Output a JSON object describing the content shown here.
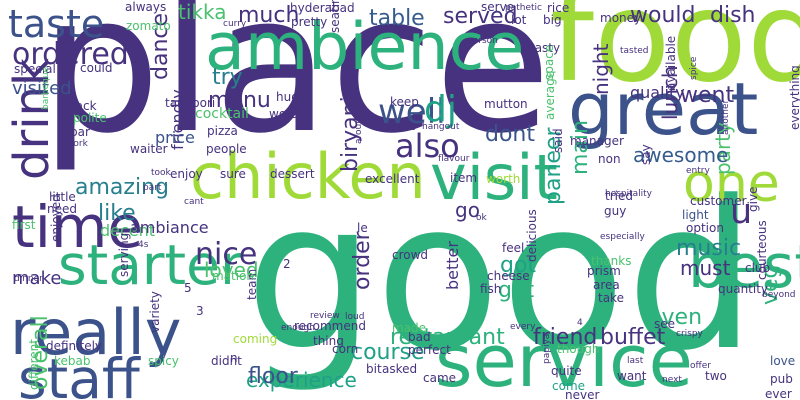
{
  "palette": {
    "purple": "#46327e",
    "indigo": "#3b528b",
    "blue": "#365c8d",
    "teal": "#277f8e",
    "cyan": "#1fa187",
    "green": "#2db27d",
    "lime": "#4ac16d",
    "yellow": "#a0da39",
    "lightyellow": "#cae11f",
    "darkpurple": "#440154"
  },
  "words": [
    "place",
    "good",
    "food",
    "ambience",
    "service",
    "great",
    "chicken",
    "visit",
    "best",
    "really",
    "staff",
    "time",
    "starter",
    "one",
    "taste",
    "drink",
    "ordered",
    "also",
    "well",
    "dj",
    "biryani",
    "menu",
    "try",
    "nice",
    "much",
    "tikka",
    "table",
    "served",
    "would",
    "dish",
    "amazing",
    "like",
    "go",
    "dont",
    "main",
    "paneer",
    "music",
    "loved",
    "experience",
    "course",
    "restaurant",
    "friend",
    "buffet",
    "order",
    "got",
    "get",
    "even",
    "must",
    "party",
    "veg",
    "awesome",
    "lunch",
    "went",
    "night",
    "quality",
    "floor",
    "overall",
    "decent",
    "make",
    "ambiance",
    "visited",
    "u",
    "dance",
    "friendly",
    "price",
    "cocktail",
    "pizza",
    "tandoori",
    "back",
    "bar",
    "polite",
    "waiter",
    "enjoy",
    "sure",
    "dessert",
    "excellent",
    "item",
    "worth",
    "better",
    "crowd",
    "feel",
    "cheese",
    "fish",
    "prism",
    "area",
    "take",
    "thanks",
    "tried",
    "guy",
    "customer",
    "light",
    "option",
    "club",
    "give",
    "courteous",
    "quantity",
    "love",
    "pub",
    "two",
    "want",
    "ever",
    "come",
    "never",
    "quite",
    "papiya",
    "came",
    "asked",
    "bit",
    "corn",
    "perfect",
    "bad",
    "made",
    "though",
    "definitely",
    "recommend",
    "thing",
    "coming",
    "variety",
    "spicy",
    "didnt",
    "n",
    "kebab",
    "different",
    "enjoyed",
    "little",
    "need",
    "first",
    "serving",
    "team",
    "mation",
    "hyderabad",
    "pretty",
    "seating",
    "lot",
    "serve",
    "rice",
    "money",
    "big",
    "tasty",
    "person",
    "always",
    "zomato",
    "could",
    "special",
    "barbeque",
    "curry",
    "keep",
    "mutton",
    "huge",
    "ice",
    "worst",
    "people",
    "manager",
    "non",
    "say",
    "everything",
    "available",
    "hospitality",
    "especially",
    "delicious",
    "said",
    "average",
    "space",
    "inside",
    "hangout",
    "around",
    "flavour",
    "another",
    "spice",
    "tasted",
    "entry",
    "beyond",
    "offer",
    "last",
    "next",
    "crispy",
    "every",
    "loud",
    "review",
    "enough",
    "dinner",
    "work",
    "took",
    "part",
    "cant",
    "ok",
    "le",
    "see",
    "pathetic",
    "4",
    "2",
    "3",
    "5",
    "4s"
  ]
}
